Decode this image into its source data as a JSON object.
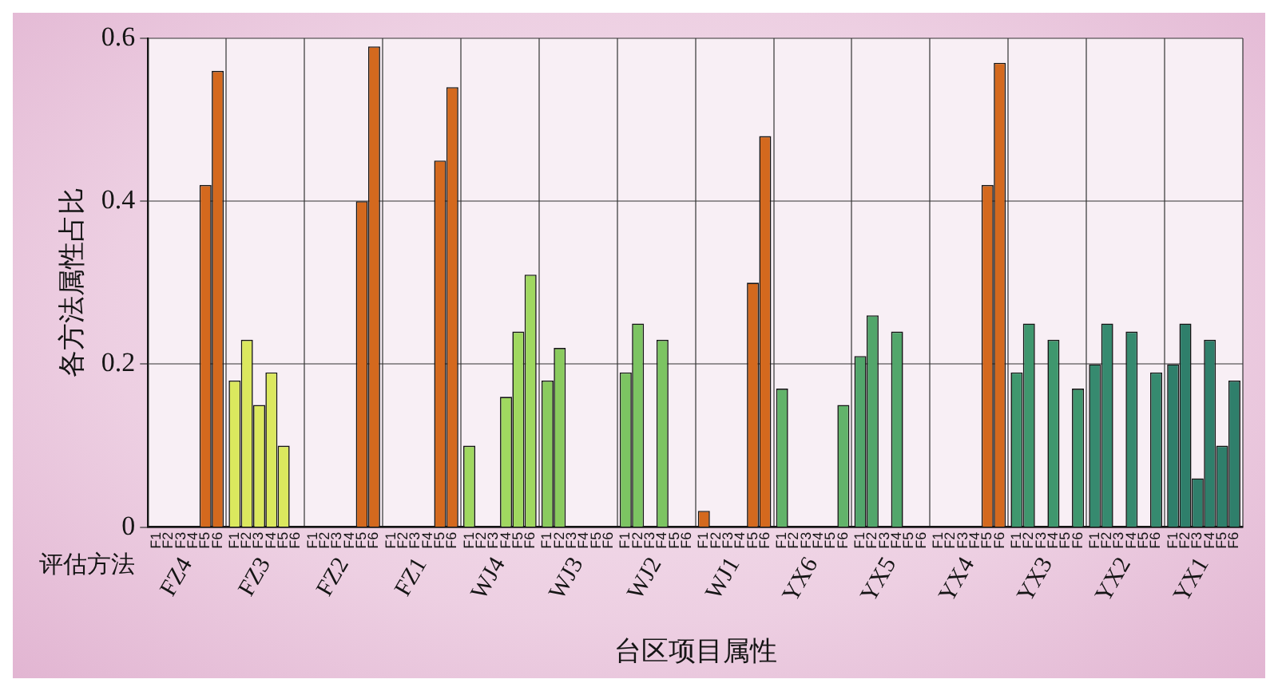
{
  "chart_data": {
    "type": "bar",
    "xlabel": "台区项目属性",
    "ylabel": "各方法属性占比",
    "legend_title": "评估方法",
    "ylim": [
      0,
      0.6
    ],
    "yticks": [
      0,
      0.2,
      0.4,
      0.6
    ],
    "grid": true,
    "categories": [
      "FZ4",
      "FZ3",
      "FZ2",
      "FZ1",
      "WJ4",
      "WJ3",
      "WJ2",
      "WJ1",
      "YX6",
      "YX5",
      "YX4",
      "YX3",
      "YX2",
      "YX1"
    ],
    "series": [
      {
        "name": "F1",
        "values": [
          0,
          0.18,
          0,
          0,
          0.1,
          0.18,
          0.19,
          0.02,
          0.17,
          0.21,
          0,
          0.19,
          0.2,
          0.2
        ],
        "colors": [
          "#d4691e",
          "#dbe85e",
          "#d4691e",
          "#d4691e",
          "#a0d860",
          "#8acb5e",
          "#7cc462",
          "#d4691e",
          "#62b36a",
          "#52a66b",
          "#d4691e",
          "#3f976e",
          "#368a6f",
          "#2f7f6b"
        ]
      },
      {
        "name": "F2",
        "values": [
          null,
          0.23,
          0,
          null,
          null,
          0.22,
          0.25,
          null,
          null,
          0.26,
          null,
          0.25,
          0.25,
          0.25
        ],
        "colors": [
          "#d4691e",
          "#dbe85e",
          "#d4691e",
          "#d4691e",
          "#a0d860",
          "#8acb5e",
          "#7cc462",
          "#d4691e",
          "#62b36a",
          "#52a66b",
          "#d4691e",
          "#3f976e",
          "#368a6f",
          "#2f7f6b"
        ]
      },
      {
        "name": "F3",
        "values": [
          null,
          0.15,
          0,
          null,
          null,
          null,
          null,
          null,
          null,
          null,
          null,
          null,
          null,
          0.06
        ],
        "colors": [
          "#d4691e",
          "#dbe85e",
          "#d4691e",
          "#d4691e",
          "#a0d860",
          "#8acb5e",
          "#7cc462",
          "#d4691e",
          "#62b36a",
          "#52a66b",
          "#d4691e",
          "#3f976e",
          "#368a6f",
          "#2f7f6b"
        ]
      },
      {
        "name": "F4",
        "values": [
          null,
          0.19,
          0,
          null,
          0.16,
          null,
          0.23,
          null,
          null,
          0.24,
          null,
          0.23,
          0.24,
          0.23
        ],
        "colors": [
          "#d4691e",
          "#dbe85e",
          "#d4691e",
          "#d4691e",
          "#a0d860",
          "#8acb5e",
          "#7cc462",
          "#d4691e",
          "#62b36a",
          "#52a66b",
          "#d4691e",
          "#3f976e",
          "#368a6f",
          "#2f7f6b"
        ]
      },
      {
        "name": "F5",
        "values": [
          0.42,
          0.1,
          0.4,
          0.45,
          0.24,
          null,
          null,
          0.3,
          null,
          null,
          0.42,
          null,
          null,
          0.1
        ],
        "colors": [
          "#d4691e",
          "#dbe85e",
          "#d4691e",
          "#d4691e",
          "#a0d860",
          "#8acb5e",
          "#7cc462",
          "#d4691e",
          "#62b36a",
          "#52a66b",
          "#d4691e",
          "#3f976e",
          "#368a6f",
          "#2f7f6b"
        ]
      },
      {
        "name": "F6",
        "values": [
          0.56,
          null,
          0.59,
          0.54,
          0.31,
          null,
          null,
          0.48,
          0.15,
          null,
          0.57,
          0.17,
          0.19,
          0.18
        ],
        "colors": [
          "#d4691e",
          "#dbe85e",
          "#d4691e",
          "#d4691e",
          "#a0d860",
          "#8acb5e",
          "#7cc462",
          "#d4691e",
          "#62b36a",
          "#52a66b",
          "#d4691e",
          "#3f976e",
          "#368a6f",
          "#2f7f6b"
        ]
      }
    ]
  }
}
